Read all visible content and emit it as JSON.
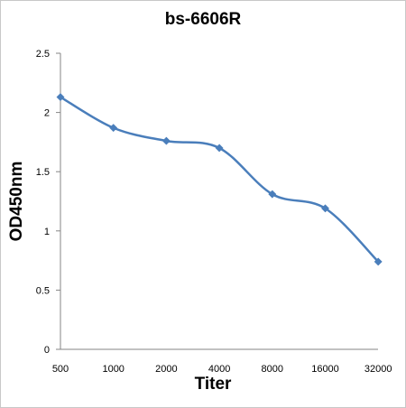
{
  "chart_data": {
    "type": "line",
    "title": "bs-6606R",
    "xlabel": "Titer",
    "ylabel": "OD450nm",
    "categories": [
      "500",
      "1000",
      "2000",
      "4000",
      "8000",
      "16000",
      "32000"
    ],
    "series": [
      {
        "values": [
          2.13,
          1.87,
          1.76,
          1.7,
          1.31,
          1.19,
          0.74
        ],
        "color": "#4a7ebb",
        "marker": "diamond",
        "smooth": true
      }
    ],
    "ylim": [
      0,
      2.5
    ],
    "yticks": [
      "0",
      "0.5",
      "1",
      "1.5",
      "2",
      "2.5"
    ],
    "grid": false,
    "legend": "none"
  }
}
